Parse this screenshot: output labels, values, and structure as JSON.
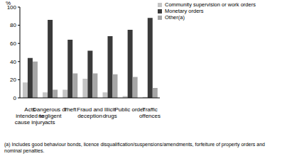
{
  "chart_data": {
    "type": "bar",
    "y_label": "%",
    "categories": [
      "Acts intended to cause injury",
      "Dangerous or negligent acts",
      "Theft",
      "Fraud and deception",
      "Illicit drugs",
      "Public order",
      "Traffic offences"
    ],
    "series": [
      {
        "name": "Community supervision or work orders",
        "color": "#c4c4c4",
        "values": [
          17,
          6,
          9,
          21,
          6,
          2,
          1
        ]
      },
      {
        "name": "Monetary orders",
        "color": "#3a3a3a",
        "values": [
          44,
          86,
          64,
          52,
          68,
          75,
          88
        ]
      },
      {
        "name": "Other(a)",
        "color": "#a6a6a6",
        "values": [
          40,
          9,
          27,
          27,
          26,
          23,
          11
        ]
      }
    ],
    "ylim": [
      0,
      100
    ],
    "yticks": [
      0,
      20,
      40,
      60,
      80,
      100
    ],
    "grid": false,
    "legend": "upper right",
    "footnote": "(a) Includes good behaviour bonds, licence disqualification/suspensions/amendments, forfeiture of property orders and nominal penalties."
  }
}
